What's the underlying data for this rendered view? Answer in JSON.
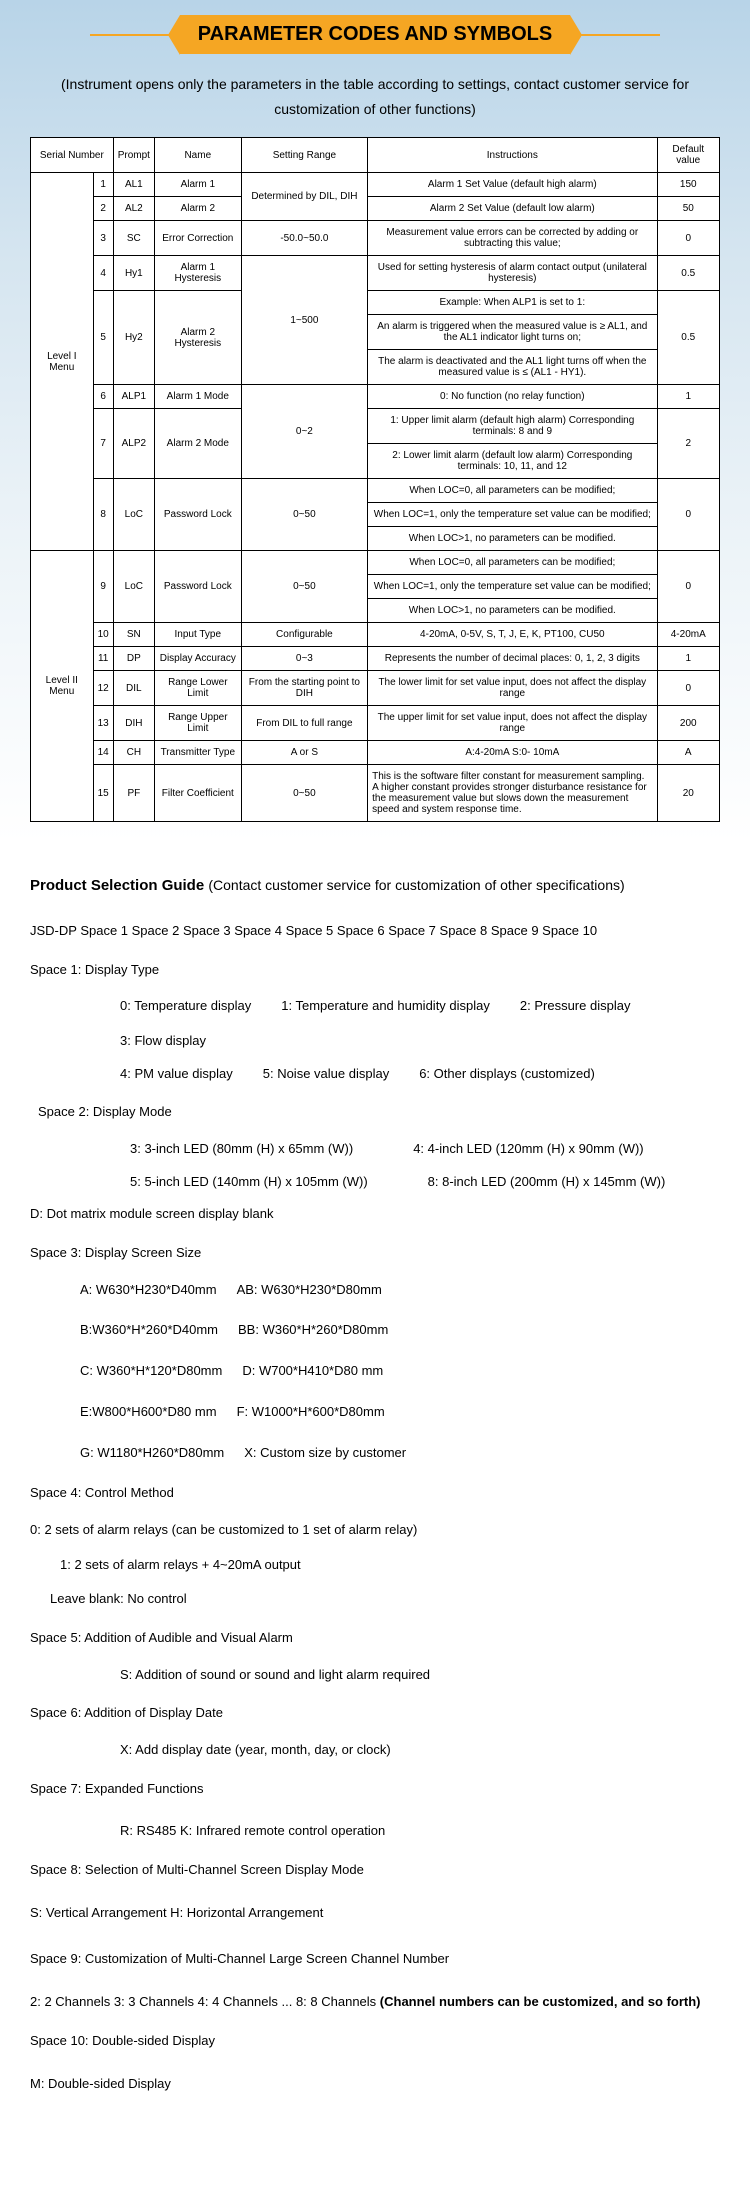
{
  "header": {
    "title": "PARAMETER CODES AND SYMBOLS",
    "subtitle": "(Instrument opens only the parameters in the table according to settings, contact customer service for customization of other functions)"
  },
  "table": {
    "headers": {
      "serial": "Serial Number",
      "prompt": "Prompt",
      "name": "Name",
      "range": "Setting Range",
      "instructions": "Instructions",
      "default": "Default value"
    },
    "level1_label": "Level I Menu",
    "level2_label": "Level II Menu",
    "rows": [
      {
        "n": "1",
        "p": "AL1",
        "name": "Alarm 1",
        "range": "Determined by DIL, DIH",
        "inst": "Alarm 1 Set Value (default high alarm)",
        "def": "150"
      },
      {
        "n": "2",
        "p": "AL2",
        "name": "Alarm 2",
        "range": "",
        "inst": "Alarm 2 Set Value (default low alarm)",
        "def": "50"
      },
      {
        "n": "3",
        "p": "SC",
        "name": "Error Correction",
        "range": "-50.0~50.0",
        "inst": "Measurement value errors can be corrected by adding or subtracting this value;",
        "def": "0"
      },
      {
        "n": "4",
        "p": "Hy1",
        "name": "Alarm 1 Hysteresis",
        "range": "1~500",
        "inst": "Used for setting hysteresis of alarm contact output (unilateral hysteresis)",
        "def": "0.5"
      },
      {
        "n": "5",
        "p": "Hy2",
        "name": "Alarm 2 Hysteresis",
        "range": "",
        "inst_multi": [
          "Example: When ALP1 is set to 1:",
          "An alarm is triggered when the measured value is ≥ AL1, and the AL1 indicator light turns on;",
          "The alarm is deactivated and the AL1 light turns off when the measured value is ≤ (AL1 - HY1)."
        ],
        "def": "0.5"
      },
      {
        "n": "6",
        "p": "ALP1",
        "name": "Alarm 1 Mode",
        "range": "0~2",
        "inst": "0: No function (no relay function)",
        "def": "1"
      },
      {
        "n": "7",
        "p": "ALP2",
        "name": "Alarm 2 Mode",
        "range": "",
        "inst_multi": [
          "1: Upper limit alarm (default high alarm) Corresponding terminals: 8 and 9",
          "2: Lower limit alarm (default low alarm) Corresponding terminals: 10, 11, and 12"
        ],
        "def": "2"
      },
      {
        "n": "8",
        "p": "LoC",
        "name": "Password Lock",
        "range": "0~50",
        "inst_multi": [
          "When LOC=0, all parameters can be modified;",
          "When LOC=1, only the temperature set value can be modified;",
          "When LOC>1, no parameters can be modified."
        ],
        "def": "0"
      },
      {
        "n": "9",
        "p": "LoC",
        "name": "Password Lock",
        "range": "0~50",
        "inst_multi": [
          "When LOC=0, all parameters can be modified;",
          "When LOC=1, only the temperature set value can be modified;",
          "When LOC>1, no parameters can be modified."
        ],
        "def": "0"
      },
      {
        "n": "10",
        "p": "SN",
        "name": "Input Type",
        "range": "Configurable",
        "inst": "4-20mA, 0-5V, S, T, J, E, K, PT100, CU50",
        "def": "4-20mA"
      },
      {
        "n": "11",
        "p": "DP",
        "name": "Display Accuracy",
        "range": "0~3",
        "inst": "Represents the number of decimal places: 0, 1, 2, 3 digits",
        "def": "1"
      },
      {
        "n": "12",
        "p": "DIL",
        "name": "Range Lower Limit",
        "range": "From the starting point to DIH",
        "inst": "The lower limit for set value input, does not affect the display range",
        "def": "0"
      },
      {
        "n": "13",
        "p": "DIH",
        "name": "Range Upper Limit",
        "range": "From DIL to full range",
        "inst": "The upper limit for set value input, does not affect the display range",
        "def": "200"
      },
      {
        "n": "14",
        "p": "CH",
        "name": "Transmitter Type",
        "range": "A or S",
        "inst": "A:4-20mA          S:0- 10mA",
        "def": "A"
      },
      {
        "n": "15",
        "p": "PF",
        "name": "Filter Coefficient",
        "range": "0~50",
        "inst": "This is the software filter constant for measurement sampling. A higher constant provides stronger disturbance resistance for the measurement value but slows down the measurement speed and system response time.",
        "def": "20"
      }
    ]
  },
  "guide": {
    "title": "Product Selection Guide",
    "title_sub": "(Contact customer service for customization of other specifications)",
    "code_line": "JSD-DP Space 1 Space 2 Space 3 Space 4 Space 5 Space 6 Space 7 Space 8 Space 9 Space 10",
    "s1": {
      "h": "Space 1: Display Type",
      "opts": [
        "0: Temperature display",
        "1: Temperature and humidity display",
        "2: Pressure display",
        "3: Flow display",
        "4: PM value display",
        "5: Noise value display",
        "6: Other displays (customized)"
      ]
    },
    "s2": {
      "h": "Space 2: Display Mode",
      "opts": [
        "3: 3-inch LED (80mm (H) x 65mm (W))",
        "4: 4-inch LED (120mm (H) x 90mm (W))",
        "5: 5-inch LED (140mm (H) x 105mm (W))",
        "8: 8-inch LED (200mm (H) x 145mm (W))"
      ],
      "extra": "D: Dot matrix module screen display blank"
    },
    "s3": {
      "h": "Space 3: Display Screen Size",
      "pairs": [
        [
          "A: W630*H230*D40mm",
          "AB: W630*H230*D80mm"
        ],
        [
          "B:W360*H*260*D40mm",
          "BB: W360*H*260*D80mm"
        ],
        [
          "C: W360*H*120*D80mm",
          "D: W700*H410*D80 mm"
        ],
        [
          "E:W800*H600*D80 mm",
          "F: W1000*H*600*D80mm"
        ],
        [
          "G: W1180*H260*D80mm",
          "X: Custom size by customer"
        ]
      ]
    },
    "s4": {
      "h": "Space 4: Control Method",
      "lines": [
        "0: 2 sets of alarm relays (can be customized to 1 set of alarm relay)",
        "1: 2 sets of alarm relays + 4~20mA output",
        "Leave blank: No control"
      ]
    },
    "s5": {
      "h": "Space 5: Addition of Audible and Visual Alarm",
      "line": "S: Addition of sound or sound and light alarm required"
    },
    "s6": {
      "h": "Space 6: Addition of Display Date",
      "line": "X: Add display date (year, month, day, or clock)"
    },
    "s7": {
      "h": "Space 7: Expanded Functions",
      "line": "R: RS485    K: Infrared remote control operation"
    },
    "s8": {
      "h": "Space 8: Selection of Multi-Channel Screen Display Mode",
      "line": "S: Vertical Arrangement    H: Horizontal Arrangement"
    },
    "s9": {
      "h": "Space 9: Customization of Multi-Channel Large Screen Channel Number",
      "line": "2: 2 Channels     3: 3 Channels        4: 4 Channels ...   8: 8 Channels",
      "bold": "(Channel numbers can be customized, and so forth)"
    },
    "s10": {
      "h": "Space 10: Double-sided Display",
      "line": "M: Double-sided Display"
    }
  }
}
